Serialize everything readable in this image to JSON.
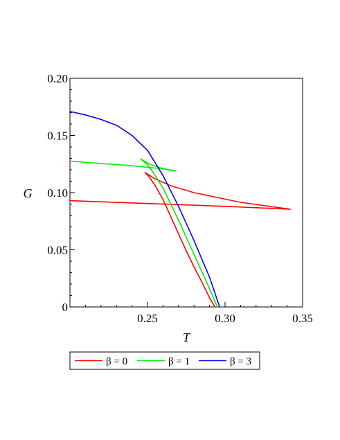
{
  "chart_data": {
    "type": "line",
    "xlabel": "T",
    "ylabel": "G",
    "xlim": [
      0.2,
      0.35
    ],
    "ylim": [
      0,
      0.2
    ],
    "x_ticks": [
      {
        "value": 0.25,
        "label": "0.25"
      },
      {
        "value": 0.3,
        "label": "0.30"
      },
      {
        "value": 0.35,
        "label": "0.35"
      }
    ],
    "y_ticks": [
      {
        "value": 0,
        "label": "0"
      },
      {
        "value": 0.05,
        "label": "0.05"
      },
      {
        "value": 0.1,
        "label": "0.10"
      },
      {
        "value": 0.15,
        "label": "0.15"
      },
      {
        "value": 0.2,
        "label": "0.20"
      }
    ],
    "grid": false,
    "legend_position": "bottom",
    "series": [
      {
        "name": "β = 0",
        "color": "#ff0000",
        "points": [
          [
            0.2,
            0.093
          ],
          [
            0.25,
            0.0905
          ],
          [
            0.3,
            0.088
          ],
          [
            0.342,
            0.0855
          ],
          [
            0.31,
            0.0915
          ],
          [
            0.28,
            0.1
          ],
          [
            0.265,
            0.106
          ],
          [
            0.255,
            0.112
          ],
          [
            0.2485,
            0.1175
          ],
          [
            0.251,
            0.114
          ],
          [
            0.255,
            0.106
          ],
          [
            0.26,
            0.094
          ],
          [
            0.265,
            0.079
          ],
          [
            0.27,
            0.064
          ],
          [
            0.275,
            0.049
          ],
          [
            0.28,
            0.035
          ],
          [
            0.285,
            0.022
          ],
          [
            0.29,
            0.008
          ],
          [
            0.2935,
            0.0
          ]
        ]
      },
      {
        "name": "β = 1",
        "color": "#00ee00",
        "points": [
          [
            0.2,
            0.1275
          ],
          [
            0.22,
            0.1255
          ],
          [
            0.24,
            0.1235
          ],
          [
            0.255,
            0.1215
          ],
          [
            0.2685,
            0.119
          ],
          [
            0.26,
            0.121
          ],
          [
            0.252,
            0.1245
          ],
          [
            0.2455,
            0.1295
          ],
          [
            0.25,
            0.1245
          ],
          [
            0.255,
            0.115
          ],
          [
            0.26,
            0.104
          ],
          [
            0.265,
            0.09
          ],
          [
            0.27,
            0.076
          ],
          [
            0.275,
            0.061
          ],
          [
            0.28,
            0.046
          ],
          [
            0.285,
            0.031
          ],
          [
            0.29,
            0.016
          ],
          [
            0.295,
            0.0
          ]
        ]
      },
      {
        "name": "β = 3",
        "color": "#0000ff",
        "points": [
          [
            0.2,
            0.171
          ],
          [
            0.21,
            0.168
          ],
          [
            0.22,
            0.164
          ],
          [
            0.23,
            0.159
          ],
          [
            0.24,
            0.15
          ],
          [
            0.25,
            0.137
          ],
          [
            0.26,
            0.115
          ],
          [
            0.27,
            0.088
          ],
          [
            0.28,
            0.058
          ],
          [
            0.29,
            0.026
          ],
          [
            0.2965,
            0.0
          ]
        ]
      }
    ]
  }
}
